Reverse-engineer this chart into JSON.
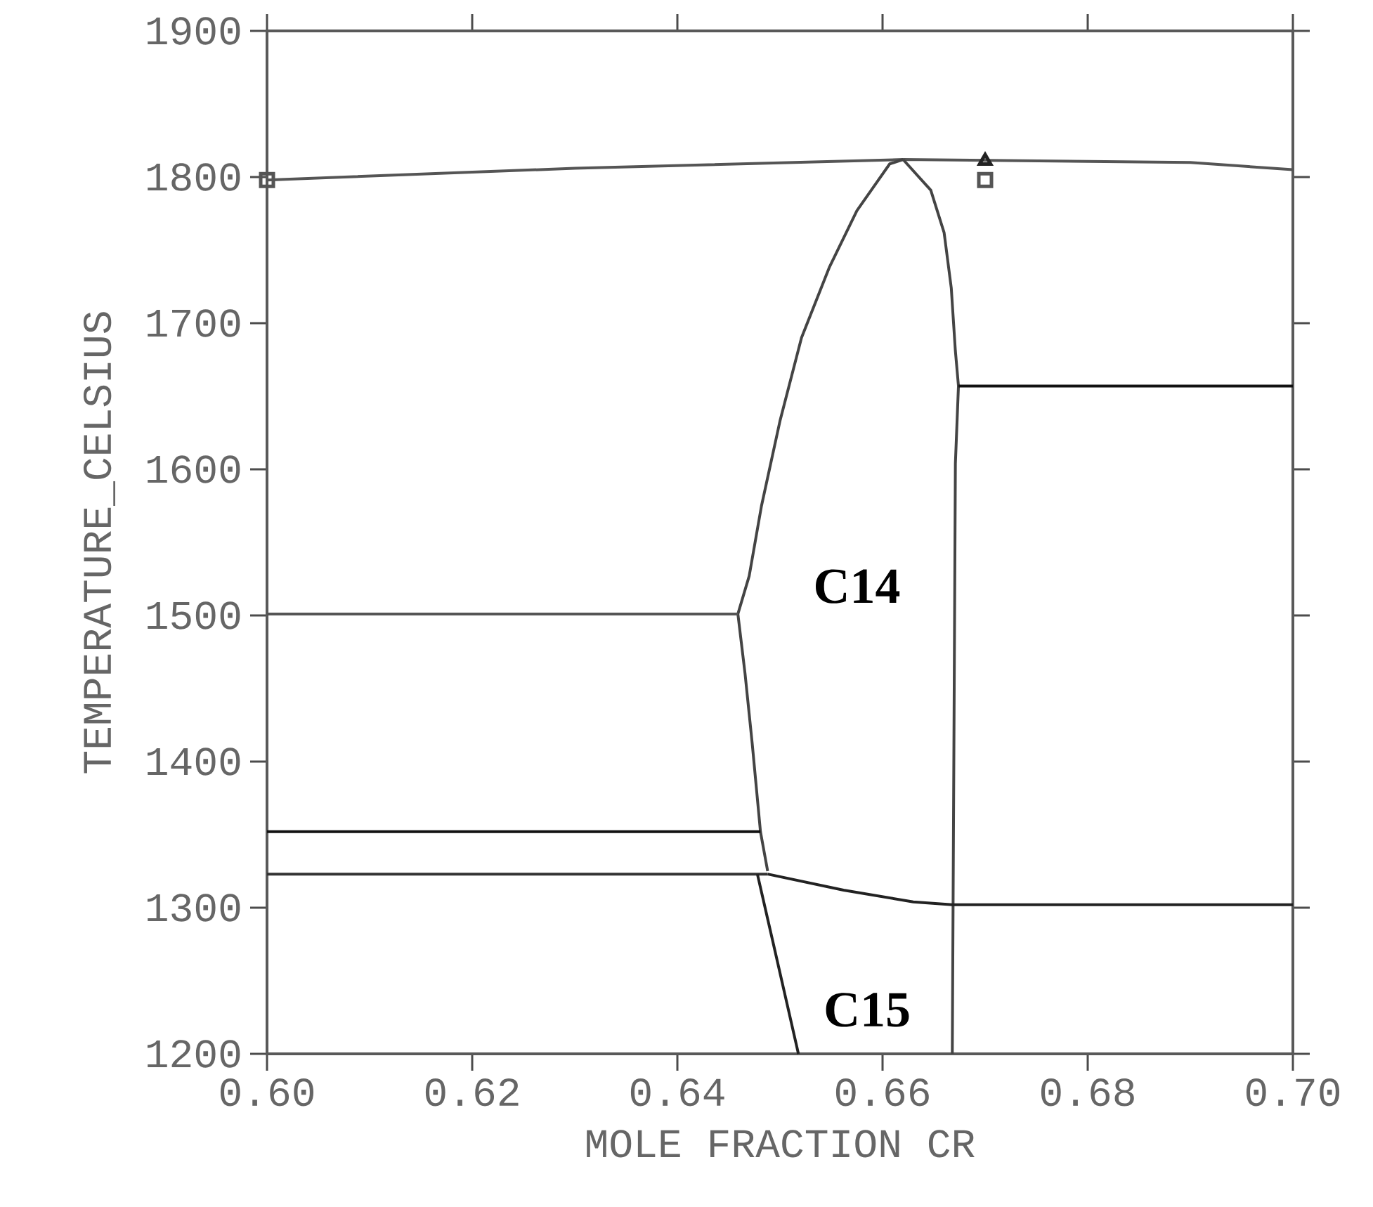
{
  "chart_data": {
    "type": "line",
    "xlabel": "MOLE FRACTION CR",
    "ylabel": "TEMPERATURE_CELSIUS",
    "xlim": [
      0.6,
      0.7
    ],
    "ylim": [
      1200,
      1900
    ],
    "xticks": [
      {
        "value": 0.6,
        "label": "0.60"
      },
      {
        "value": 0.62,
        "label": "0.62"
      },
      {
        "value": 0.64,
        "label": "0.64"
      },
      {
        "value": 0.66,
        "label": "0.66"
      },
      {
        "value": 0.68,
        "label": "0.68"
      },
      {
        "value": 0.7,
        "label": "0.70"
      }
    ],
    "yticks": [
      1200,
      1300,
      1400,
      1500,
      1600,
      1700,
      1800,
      1900
    ],
    "annotations": [
      "C14",
      "C15"
    ],
    "series": [
      {
        "color": "#555555",
        "x": [
          0.6,
          0.63,
          0.662,
          0.69,
          0.7
        ],
        "values": [
          1798,
          1806,
          1812,
          1810,
          1805
        ]
      },
      {
        "color": "#444444",
        "x": [
          0.662,
          0.6607,
          0.6575,
          0.6548,
          0.6521,
          0.65,
          0.6482,
          0.647,
          0.6459,
          0.6466,
          0.6473,
          0.6481,
          0.6488
        ],
        "values": [
          1812,
          1809,
          1777,
          1738,
          1690,
          1633,
          1575,
          1527,
          1501,
          1460,
          1412,
          1352,
          1325
        ]
      },
      {
        "color": "#444444",
        "x": [
          0.662,
          0.6647,
          0.666,
          0.6667,
          0.6671,
          0.6674,
          0.6671,
          0.6668
        ],
        "values": [
          1812,
          1791,
          1762,
          1724,
          1681,
          1657,
          1604,
          1200
        ]
      },
      {
        "color": "#111111",
        "x": [
          0.6674,
          0.7
        ],
        "values": [
          1657,
          1657
        ]
      },
      {
        "color": "#555555",
        "x": [
          0.6,
          0.6459
        ],
        "values": [
          1501,
          1501
        ]
      },
      {
        "color": "#111111",
        "x": [
          0.6,
          0.6481
        ],
        "values": [
          1352,
          1352
        ]
      },
      {
        "color": "#333333",
        "x": [
          0.6,
          0.6488
        ],
        "values": [
          1323,
          1323
        ]
      },
      {
        "color": "#222222",
        "x": [
          0.6488,
          0.6562,
          0.663,
          0.6668,
          0.7
        ],
        "values": [
          1323,
          1312,
          1304,
          1302,
          1302
        ]
      },
      {
        "color": "#222222",
        "x": [
          0.6478,
          0.6493,
          0.6518
        ],
        "values": [
          1323,
          1277,
          1200
        ]
      },
      {
        "type": "scatter",
        "marker": "square",
        "color": "#555555",
        "x": [
          0.6,
          0.67
        ],
        "values": [
          1798,
          1798
        ]
      },
      {
        "type": "scatter",
        "marker": "triangle",
        "color": "#222222",
        "x": [
          0.67
        ],
        "values": [
          1811
        ]
      }
    ]
  }
}
